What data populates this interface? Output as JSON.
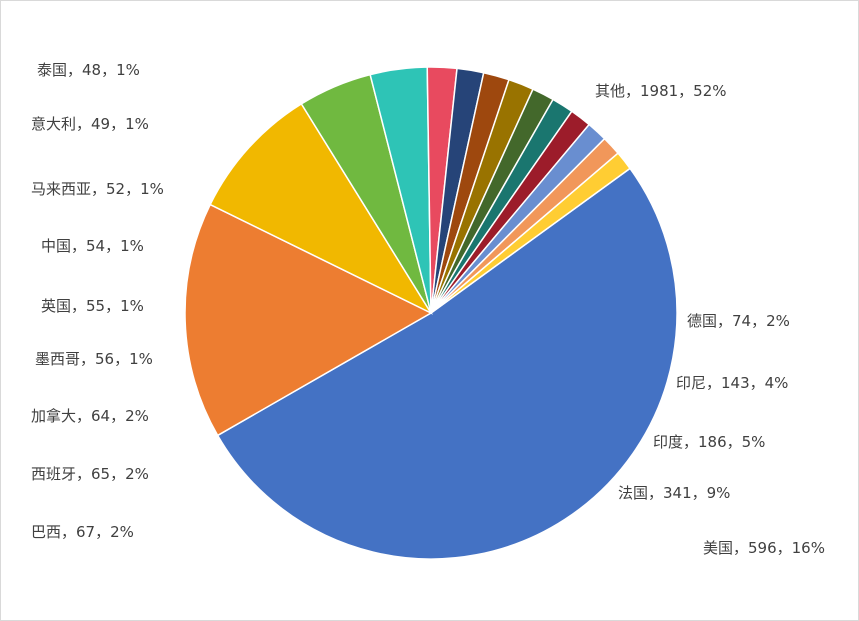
{
  "chart_data": {
    "type": "pie",
    "categories": [
      "其他",
      "美国",
      "法国",
      "印度",
      "印尼",
      "德国",
      "巴西",
      "西班牙",
      "加拿大",
      "墨西哥",
      "英国",
      "中国",
      "马来西亚",
      "意大利",
      "泰国"
    ],
    "values": [
      1981,
      596,
      341,
      186,
      143,
      74,
      67,
      65,
      64,
      56,
      55,
      54,
      52,
      49,
      48
    ],
    "percents": [
      "52%",
      "16%",
      "9%",
      "5%",
      "4%",
      "2%",
      "2%",
      "2%",
      "2%",
      "1%",
      "1%",
      "1%",
      "1%",
      "1%",
      "1%"
    ],
    "labels": [
      "其他，1981，52%",
      "美国，596，16%",
      "法国，341，9%",
      "印度，186，5%",
      "印尼，143，4%",
      "德国，74，2%",
      "巴西，67，2%",
      "西班牙，65，2%",
      "加拿大，64，2%",
      "墨西哥，56，1%",
      "英国，55，1%",
      "中国，54，1%",
      "马来西亚，52，1%",
      "意大利，49，1%",
      "泰国，48，1%"
    ],
    "colors": [
      "#4472C4",
      "#ED7D31",
      "#F1B800",
      "#70B940",
      "#2EC4B6",
      "#E84A5F",
      "#264478",
      "#9E480E",
      "#997300",
      "#43682B",
      "#1A766F",
      "#9C1C2A",
      "#698ED0",
      "#F1975A",
      "#FFCD33"
    ],
    "start_angle_deg": -36,
    "direction": "clockwise",
    "legend": "none"
  }
}
